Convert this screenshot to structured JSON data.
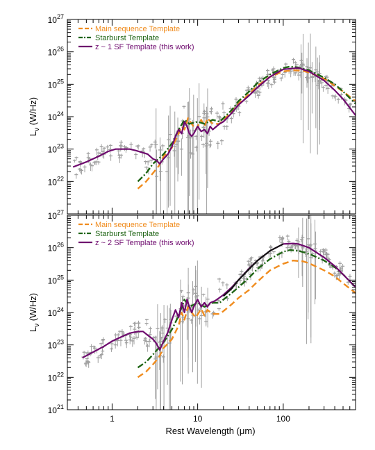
{
  "xlabel": "Rest Wavelength (μm)",
  "ylabel": "Lν (W/Hz)",
  "colors": {
    "main": "#f08c1e",
    "starburst": "#1e6414",
    "sf": "#6e0a6e",
    "data": "#a0a0a0",
    "extra": "#141414"
  },
  "xticks": [
    {
      "value": 1,
      "label": "1"
    },
    {
      "value": 10,
      "label": "10"
    },
    {
      "value": 100,
      "label": "100"
    }
  ],
  "chart_data": [
    {
      "type": "line",
      "panel": "top",
      "xscale": "log",
      "yscale": "log",
      "xlim": [
        0.3,
        700
      ],
      "ylim": [
        1e+21,
        1e+27
      ],
      "yticks": [
        {
          "value": 1e+22,
          "label": "10^22"
        },
        {
          "value": 1e+23,
          "label": "10^23"
        },
        {
          "value": 1e+24,
          "label": "10^24"
        },
        {
          "value": 1e+25,
          "label": "10^25"
        },
        {
          "value": 1e+26,
          "label": "10^26"
        },
        {
          "value": 1e+27,
          "label": "10^27"
        }
      ],
      "legend": [
        {
          "label": "Main sequence Template",
          "series": "main",
          "style": "dashed"
        },
        {
          "label": "Starburst Template",
          "series": "starburst",
          "style": "dashdot"
        },
        {
          "label": "z ~ 1 SF Template (this work)",
          "series": "sf",
          "style": "solid"
        }
      ],
      "legend_position": "top-left",
      "series": [
        {
          "key": "main",
          "x": [
            2,
            2.5,
            3,
            3.5,
            4,
            5,
            6,
            6.5,
            7,
            7.7,
            8.5,
            9.5,
            11,
            12,
            13,
            15,
            18,
            20,
            25,
            30,
            40,
            50,
            70,
            100,
            130,
            170,
            200,
            300,
            400,
            500,
            700
          ],
          "y": [
            6e+21,
            1e+22,
            1.8e+22,
            3e+22,
            6e+22,
            1.1e+23,
            3e+23,
            5e+23,
            4e+23,
            9e+23,
            6e+23,
            4e+23,
            8e+23,
            5e+23,
            9e+23,
            6e+23,
            6e+23,
            8e+23,
            1.4e+24,
            2.5e+24,
            5e+24,
            9e+24,
            1.7e+25,
            2.5e+25,
            2.7e+25,
            2.6e+25,
            2.3e+25,
            1.5e+25,
            9e+24,
            6e+24,
            3e+24
          ]
        },
        {
          "key": "starburst",
          "x": [
            2,
            2.5,
            3,
            3.5,
            4,
            5,
            6,
            7,
            8,
            10,
            12,
            15,
            18,
            20,
            25,
            30,
            40,
            50,
            70,
            100,
            120,
            150,
            200,
            300,
            400,
            500,
            700
          ],
          "y": [
            1e+22,
            1.8e+22,
            3.5e+22,
            5e+22,
            7e+22,
            1.5e+23,
            4e+23,
            8e+23,
            6e+23,
            7e+23,
            6e+23,
            8e+23,
            7e+23,
            9e+23,
            1.6e+24,
            3e+24,
            6e+24,
            1.1e+25,
            2e+25,
            3.2e+25,
            3.5e+25,
            3.3e+25,
            2.7e+25,
            1.6e+25,
            1e+25,
            6e+24,
            2.5e+24
          ]
        },
        {
          "key": "sf",
          "x": [
            0.35,
            0.5,
            0.7,
            0.9,
            1.1,
            1.3,
            1.6,
            1.9,
            2.2,
            2.6,
            3,
            3.3,
            3.6,
            4,
            4.5,
            5,
            5.5,
            6,
            6.5,
            7,
            7.5,
            8,
            8.5,
            9,
            10,
            11,
            12,
            13,
            14,
            15,
            18,
            20,
            25,
            30,
            40,
            50,
            70,
            100,
            150,
            200,
            300,
            400,
            500,
            700
          ],
          "y": [
            2.8e+22,
            4e+22,
            6e+22,
            8.5e+22,
            1e+23,
            1e+23,
            1e+23,
            9e+22,
            8e+22,
            7e+22,
            5e+22,
            4.5e+22,
            3.5e+22,
            5e+22,
            7e+22,
            1.2e+23,
            2.5e+23,
            4e+23,
            3e+23,
            7e+23,
            5e+23,
            3e+23,
            2.5e+23,
            3e+23,
            5e+23,
            3.5e+23,
            4e+23,
            3e+23,
            5e+23,
            4e+23,
            6e+23,
            7e+23,
            1.3e+24,
            2.3e+24,
            4.5e+24,
            8e+24,
            1.7e+25,
            2.9e+25,
            3.2e+25,
            2.5e+25,
            1.3e+25,
            6.5e+24,
            3.5e+24,
            1.1e+24
          ]
        }
      ]
    },
    {
      "type": "line",
      "panel": "bottom",
      "xscale": "log",
      "yscale": "log",
      "xlim": [
        0.3,
        700
      ],
      "ylim": [
        1e+21,
        1e+27
      ],
      "yticks": [
        {
          "value": 1e+21,
          "label": "10^21"
        },
        {
          "value": 1e+22,
          "label": "10^22"
        },
        {
          "value": 1e+23,
          "label": "10^23"
        },
        {
          "value": 1e+24,
          "label": "10^24"
        },
        {
          "value": 1e+25,
          "label": "10^25"
        },
        {
          "value": 1e+26,
          "label": "10^26"
        },
        {
          "value": 1e+27,
          "label": "10^27"
        }
      ],
      "legend": [
        {
          "label": "Main sequence Template",
          "series": "main",
          "style": "dashed"
        },
        {
          "label": "Starburst Template",
          "series": "starburst",
          "style": "dashdot"
        },
        {
          "label": "z ~ 2 SF Template (this work)",
          "series": "sf",
          "style": "solid"
        }
      ],
      "legend_position": "top-left",
      "series": [
        {
          "key": "main",
          "x": [
            2,
            2.5,
            3,
            3.5,
            4,
            5,
            6,
            6.5,
            7,
            7.7,
            8.5,
            9.5,
            11,
            12,
            13,
            15,
            18,
            20,
            25,
            30,
            40,
            50,
            70,
            100,
            130,
            170,
            200,
            300,
            400,
            500,
            700
          ],
          "y": [
            1e+22,
            1.5e+22,
            2.5e+22,
            4e+22,
            8e+22,
            1.5e+23,
            4e+23,
            1e+24,
            6e+23,
            1.5e+24,
            1e+24,
            7e+23,
            1.3e+24,
            8e+23,
            1.2e+24,
            9e+23,
            9e+23,
            1.1e+24,
            1.8e+24,
            2.8e+24,
            5e+24,
            9e+24,
            2e+25,
            3.2e+25,
            4e+25,
            3.8e+25,
            3.3e+25,
            2e+25,
            1.3e+25,
            8e+24,
            4e+24
          ]
        },
        {
          "key": "starburst",
          "x": [
            2,
            2.5,
            3,
            3.5,
            4,
            5,
            6,
            7,
            8,
            10,
            12,
            15,
            18,
            20,
            25,
            30,
            40,
            50,
            70,
            100,
            120,
            150,
            200,
            300,
            400,
            500,
            700
          ],
          "y": [
            2e+22,
            3e+22,
            5e+22,
            8e+22,
            1.2e+23,
            3e+23,
            8e+23,
            2.5e+24,
            1.5e+24,
            2e+24,
            1.5e+24,
            2e+24,
            2e+24,
            2.5e+24,
            4e+24,
            6e+24,
            1.2e+25,
            2.2e+25,
            4.5e+25,
            7.5e+25,
            8.5e+25,
            8e+25,
            6.5e+25,
            4e+25,
            2.5e+25,
            1.5e+25,
            6e+24
          ]
        },
        {
          "key": "sf",
          "x": [
            0.45,
            0.6,
            0.8,
            1,
            1.3,
            1.6,
            2,
            2.3,
            2.6,
            3,
            3.3,
            3.6,
            4,
            4.5,
            5,
            5.5,
            6,
            6.5,
            7,
            7.5,
            8,
            8.5,
            9,
            10,
            11,
            12,
            13,
            14,
            16,
            20,
            25,
            30,
            40,
            50,
            70,
            100,
            130,
            150,
            200,
            300,
            400,
            500,
            700
          ],
          "y": [
            4e+22,
            6e+22,
            9e+22,
            1.3e+23,
            1.8e+23,
            2.3e+23,
            2.6e+23,
            2.6e+23,
            2e+23,
            1.5e+23,
            1.1e+23,
            7e+22,
            1.3e+23,
            2.5e+23,
            6e+23,
            1.2e+24,
            7e+23,
            2e+24,
            1e+24,
            2.5e+24,
            1.5e+24,
            1e+24,
            1.5e+24,
            2.5e+24,
            1.5e+24,
            2e+24,
            1.5e+24,
            2e+24,
            2.3e+24,
            3.5e+24,
            6e+24,
            1e+25,
            2.3e+25,
            4e+25,
            8e+25,
            1.3e+26,
            1.35e+26,
            1.3e+26,
            1e+26,
            5e+25,
            2.7e+25,
            1.5e+25,
            6e+24
          ]
        },
        {
          "key": "extra",
          "x": [
            20,
            25,
            30,
            40,
            50,
            70,
            100
          ],
          "y": [
            3.2e+24,
            5.5e+24,
            1e+25,
            2.2e+25,
            4e+25,
            8e+25,
            1.3e+26
          ]
        }
      ]
    }
  ]
}
